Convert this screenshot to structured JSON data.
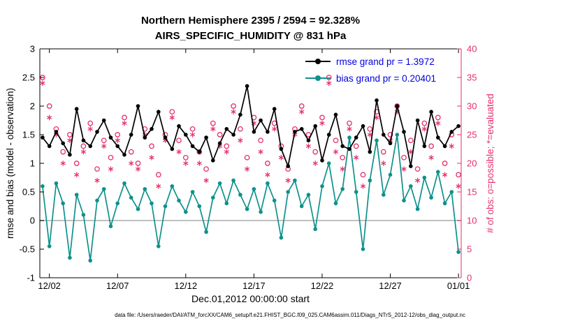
{
  "chart_data": {
    "type": "line",
    "title_line1": "Northern Hemisphere 2395 / 2594 = 92.328%",
    "title_line2": "AIRS_SPECIFIC_HUMIDITY @ 831 hPa",
    "x_axis_label": "Dec.01,2012 00:00:00 start",
    "y_left_label": "rmse and bias (model - observation)",
    "y_right_label": "# of obs: o=possible; *=evaluated",
    "footer": "data file: /Users/raeder/DAI/ATM_forcXX/CAM6_setup/f.e21.FHIST_BGC.f09_025.CAM6assim.011/Diags_NTrS_2012-12/obs_diag_output.nc",
    "legend": [
      {
        "label": "rmse grand pr = 1.3972",
        "series": "rmse"
      },
      {
        "label": "bias grand pr = 0.20401",
        "series": "bias"
      }
    ],
    "y_left_range": [
      -1,
      3
    ],
    "y_left_ticks": [
      {
        "v": 3,
        "label": "3"
      },
      {
        "v": 2.5,
        "label": "2.5"
      },
      {
        "v": 2,
        "label": "2"
      },
      {
        "v": 1.5,
        "label": "1.5"
      },
      {
        "v": 1,
        "label": "1"
      },
      {
        "v": 0.5,
        "label": "0.5"
      },
      {
        "v": 0,
        "label": "0"
      },
      {
        "v": -0.5,
        "label": "-0.5"
      },
      {
        "v": -1,
        "label": "-1"
      }
    ],
    "y_right_range": [
      0,
      40
    ],
    "y_right_ticks": [
      {
        "v": 0,
        "label": "0"
      },
      {
        "v": 5,
        "label": "5"
      },
      {
        "v": 10,
        "label": "10"
      },
      {
        "v": 15,
        "label": "15"
      },
      {
        "v": 20,
        "label": "20"
      },
      {
        "v": 25,
        "label": "25"
      },
      {
        "v": 30,
        "label": "30"
      },
      {
        "v": 35,
        "label": "35"
      },
      {
        "v": 40,
        "label": "40"
      }
    ],
    "x_range": [
      0.3,
      31.2
    ],
    "x_ticks": [
      {
        "day": 1,
        "label": "12/02"
      },
      {
        "day": 6,
        "label": "12/07"
      },
      {
        "day": 11,
        "label": "12/12"
      },
      {
        "day": 16,
        "label": "12/17"
      },
      {
        "day": 21,
        "label": "12/22"
      },
      {
        "day": 26,
        "label": "12/27"
      },
      {
        "day": 31,
        "label": "01/01"
      }
    ],
    "x_days": [
      0.5,
      1,
      1.5,
      2,
      2.5,
      3,
      3.5,
      4,
      4.5,
      5,
      5.5,
      6,
      6.5,
      7,
      7.5,
      8,
      8.5,
      9,
      9.5,
      10,
      10.5,
      11,
      11.5,
      12,
      12.5,
      13,
      13.5,
      14,
      14.5,
      15,
      15.5,
      16,
      16.5,
      17,
      17.5,
      18,
      18.5,
      19,
      19.5,
      20,
      20.5,
      21,
      21.5,
      22,
      22.5,
      23,
      23.5,
      24,
      24.5,
      25,
      25.5,
      26,
      26.5,
      27,
      27.5,
      28,
      28.5,
      29,
      29.5,
      30,
      30.5,
      31
    ],
    "series": {
      "rmse": [
        1.45,
        1.3,
        1.55,
        1.35,
        1.15,
        1.95,
        1.4,
        1.3,
        1.55,
        1.75,
        1.45,
        1.3,
        1.15,
        1.5,
        2.0,
        1.45,
        1.6,
        1.9,
        1.45,
        1.25,
        1.65,
        1.5,
        1.3,
        1.2,
        1.45,
        1.05,
        1.35,
        1.6,
        1.5,
        1.85,
        2.35,
        1.55,
        1.75,
        1.55,
        1.95,
        1.25,
        0.95,
        1.55,
        1.6,
        1.4,
        1.65,
        1.05,
        1.5,
        1.85,
        1.3,
        1.25,
        1.45,
        1.65,
        1.2,
        2.1,
        1.5,
        1.35,
        2.0,
        1.55,
        0.95,
        1.75,
        1.3,
        1.9,
        1.45,
        1.3,
        1.55,
        1.65
      ],
      "bias": [
        0.6,
        -0.45,
        0.65,
        0.3,
        -0.65,
        0.45,
        0.1,
        -0.7,
        0.35,
        0.55,
        -0.1,
        0.3,
        0.65,
        0.4,
        0.2,
        0.55,
        0.3,
        -0.45,
        0.25,
        0.6,
        0.35,
        0.15,
        0.5,
        0.25,
        -0.2,
        0.4,
        0.65,
        0.3,
        0.7,
        0.45,
        0.2,
        0.55,
        0.15,
        0.65,
        0.35,
        -0.3,
        0.5,
        0.7,
        0.25,
        0.45,
        -0.15,
        0.6,
        1.0,
        0.3,
        0.55,
        1.45,
        0.5,
        -0.5,
        0.7,
        1.4,
        0.45,
        0.8,
        1.5,
        0.35,
        0.6,
        0.2,
        0.75,
        0.4,
        0.85,
        0.3,
        0.5,
        -0.55
      ],
      "obs_possible": [
        35,
        30,
        26,
        22,
        25,
        20,
        23,
        27,
        19,
        24,
        21,
        25,
        28,
        22,
        20,
        26,
        23,
        18,
        25,
        29,
        24,
        21,
        26,
        22,
        19,
        27,
        25,
        23,
        30,
        26,
        21,
        28,
        24,
        20,
        27,
        23,
        19,
        26,
        30,
        25,
        22,
        28,
        35,
        24,
        21,
        27,
        23,
        18,
        26,
        29,
        22,
        25,
        30,
        21,
        24,
        19,
        27,
        23,
        28,
        20,
        25,
        18
      ],
      "obs_evaluated": [
        34,
        28,
        25,
        20,
        24,
        18,
        22,
        26,
        17,
        23,
        19,
        24,
        27,
        20,
        19,
        25,
        21,
        16,
        24,
        28,
        22,
        20,
        25,
        20,
        17,
        26,
        23,
        22,
        29,
        24,
        19,
        27,
        22,
        18,
        26,
        21,
        17,
        25,
        29,
        23,
        20,
        27,
        34,
        22,
        19,
        26,
        21,
        16,
        25,
        28,
        20,
        24,
        29,
        19,
        22,
        17,
        26,
        21,
        27,
        18,
        23,
        16
      ]
    },
    "colors": {
      "rmse": "#000000",
      "bias": "#0e918c",
      "obs": "#e62e6b",
      "legend_text": "#0000e0",
      "zero_line": "#c0c0c0",
      "axis": "#000000"
    }
  }
}
